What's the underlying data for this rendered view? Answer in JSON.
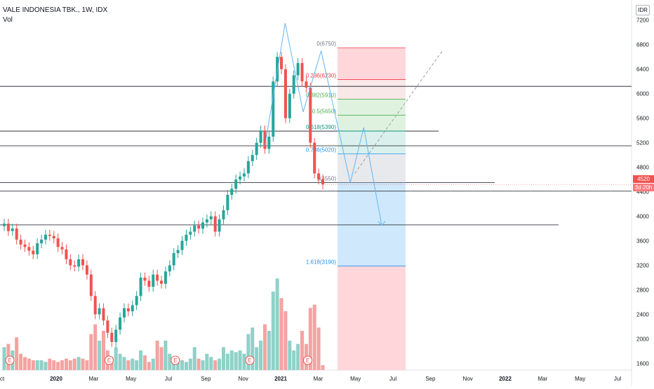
{
  "header": {
    "title": "VALE INDONESIA TBK., 1W, IDX",
    "volume_label": "Vol",
    "currency": "IDR"
  },
  "last_price_tag": "4520",
  "countdown": "3d 20h",
  "colors": {
    "up": "#26a69a",
    "down": "#ef5350",
    "vol_up": "#8fd1c8",
    "vol_down": "#f4a3a2",
    "pattern": "#64b5f6",
    "target_zone": "#bbdefb",
    "stop_zone": "#ffcdd2"
  },
  "chart_data": {
    "type": "candlestick",
    "title": "VALE INDONESIA TBK., 1W, IDX",
    "xlabel": "",
    "ylabel": "",
    "currency": "IDR",
    "ylim": [
      1400,
      7300
    ],
    "y_ticks": [
      1600,
      2000,
      2400,
      2800,
      3200,
      3600,
      4000,
      4400,
      4800,
      5200,
      5600,
      6000,
      6400,
      6800,
      7200
    ],
    "x_ticks": [
      {
        "label": "Oct",
        "x": "2019-10"
      },
      {
        "label": "2020",
        "x": "2020-01"
      },
      {
        "label": "Mar",
        "x": "2020-03"
      },
      {
        "label": "May",
        "x": "2020-05"
      },
      {
        "label": "Jul",
        "x": "2020-07"
      },
      {
        "label": "Sep",
        "x": "2020-09"
      },
      {
        "label": "Nov",
        "x": "2020-11"
      },
      {
        "label": "2021",
        "x": "2021-01"
      },
      {
        "label": "Mar",
        "x": "2021-03"
      },
      {
        "label": "May",
        "x": "2021-05"
      },
      {
        "label": "Jul",
        "x": "2021-07"
      },
      {
        "label": "Sep",
        "x": "2021-09"
      },
      {
        "label": "Nov",
        "x": "2021-11"
      },
      {
        "label": "2022",
        "x": "2022-01"
      },
      {
        "label": "Mar",
        "x": "2022-03"
      },
      {
        "label": "May",
        "x": "2022-05"
      },
      {
        "label": "Jul",
        "x": "2022-07"
      }
    ],
    "last_price": 4520,
    "closes": [
      3880,
      3760,
      3800,
      3620,
      3540,
      3500,
      3440,
      3380,
      3560,
      3620,
      3700,
      3680,
      3640,
      3500,
      3460,
      3300,
      3200,
      3180,
      3300,
      3200,
      3050,
      2700,
      2400,
      2500,
      2300,
      2100,
      1950,
      2150,
      2350,
      2500,
      2450,
      2550,
      2700,
      3000,
      2950,
      2850,
      3050,
      2950,
      2900,
      3100,
      3200,
      3400,
      3450,
      3600,
      3700,
      3750,
      3850,
      3800,
      3900,
      3950,
      4000,
      3750,
      3950,
      4100,
      4350,
      4450,
      4600,
      4650,
      4700,
      4900,
      5000,
      5200,
      5400,
      5100,
      5300,
      6200,
      6600,
      6400,
      5600,
      6000,
      6300,
      6500,
      6200,
      6100,
      5200,
      4700,
      4600,
      4520
    ],
    "volume": {
      "ylim": [
        0,
        3000
      ],
      "values": [
        700,
        800,
        600,
        1000,
        500,
        400,
        350,
        300,
        300,
        300,
        250,
        350,
        300,
        250,
        300,
        350,
        300,
        350,
        400,
        350,
        300,
        1100,
        1400,
        900,
        1200,
        600,
        400,
        700,
        500,
        400,
        300,
        350,
        300,
        600,
        450,
        250,
        350,
        900,
        700,
        900,
        500,
        300,
        350,
        300,
        250,
        350,
        700,
        350,
        300,
        500,
        400,
        300,
        350,
        700,
        500,
        600,
        550,
        600,
        500,
        1100,
        1300,
        700,
        900,
        1400,
        1200,
        2400,
        2800,
        2200,
        1800,
        900,
        600,
        800,
        1200,
        800,
        1900,
        2000,
        1300,
        150
      ]
    },
    "earnings_markers": [
      0,
      24,
      40,
      58,
      72
    ],
    "earnings_label": "E",
    "horizontal_levels": [
      6120,
      5390,
      5150,
      4550,
      4410,
      3860
    ],
    "fibonacci": [
      {
        "label": "0(6750)",
        "price": 6750,
        "color": "#f23645",
        "labelColor": "#787b86"
      },
      {
        "label": "0.236(6230)",
        "price": 6230,
        "color": "#f23645",
        "labelColor": "#f23645"
      },
      {
        "label": "0.382(5910)",
        "price": 5910,
        "color": "#4caf50",
        "labelColor": "#4caf50"
      },
      {
        "label": "0.5(5650)",
        "price": 5650,
        "color": "#4caf50",
        "labelColor": "#4caf50"
      },
      {
        "label": "0.618(5390)",
        "price": 5390,
        "color": "#089981",
        "labelColor": "#089981"
      },
      {
        "label": "0.786(5020)",
        "price": 5020,
        "color": "#2196f3",
        "labelColor": "#2196f3"
      },
      {
        "label": "1(4550)",
        "price": 4550,
        "color": "#787b86",
        "labelColor": "#787b86"
      },
      {
        "label": "1.618(3190)",
        "price": 3190,
        "color": "#2196f3",
        "labelColor": "#2196f3"
      }
    ],
    "pattern_path": [
      [
        2020.93,
        5150
      ],
      [
        2021.02,
        7150
      ],
      [
        2021.1,
        5700
      ],
      [
        2021.18,
        6700
      ],
      [
        2021.31,
        4550
      ],
      [
        2021.37,
        5450
      ],
      [
        2021.45,
        3850
      ]
    ],
    "projection_line": [
      [
        2021.33,
        4700
      ],
      [
        2021.72,
        6700
      ]
    ]
  }
}
